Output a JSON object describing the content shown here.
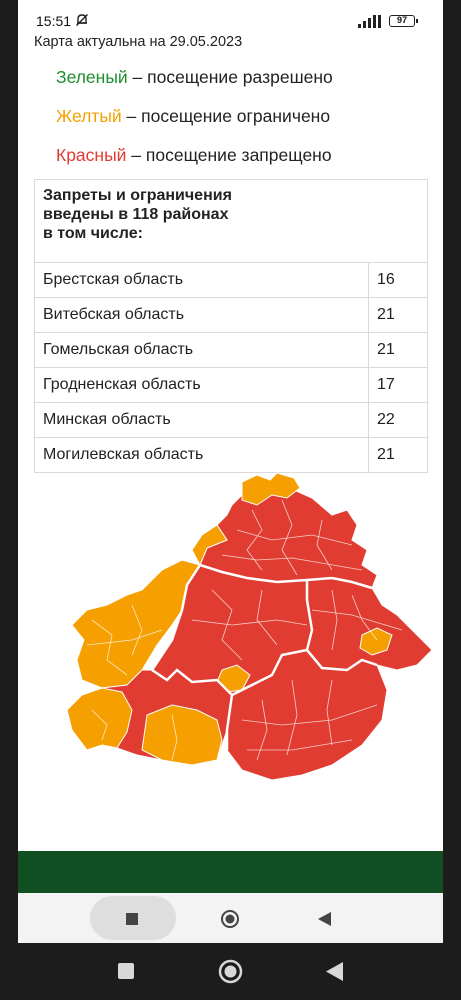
{
  "status_bar": {
    "time": "15:51",
    "battery_level": "97"
  },
  "map_date": "Карта актуальна на 29.05.2023",
  "legend": [
    {
      "color_word": "Зеленый",
      "description": " – посещение разрешено",
      "color": "#1e8f2e"
    },
    {
      "color_word": "Желтый",
      "description": " – посещение ограничено",
      "color": "#f5a000"
    },
    {
      "color_word": "Красный",
      "description": " – посещение запрещено",
      "color": "#e03c31"
    }
  ],
  "table": {
    "header_line1": "Запреты и ограничения",
    "header_line2": "введены в 118 районах",
    "header_line3": "в том числе:",
    "rows": [
      {
        "region": "Брестская область",
        "count": "16"
      },
      {
        "region": "Витебская область",
        "count": "21"
      },
      {
        "region": "Гомельская область",
        "count": "21"
      },
      {
        "region": "Гродненская область",
        "count": "17"
      },
      {
        "region": "Минская область",
        "count": "22"
      },
      {
        "region": "Могилевская область",
        "count": "21"
      }
    ]
  },
  "map_colors": {
    "red": "#e03c31",
    "yellow": "#f5a000",
    "border": "#ffffff"
  },
  "icons": {
    "mute": "bell-off-icon",
    "signal": "signal-icon",
    "battery": "battery-icon",
    "stop": "square-stop-icon",
    "home": "circle-home-icon",
    "back": "triangle-back-icon"
  }
}
